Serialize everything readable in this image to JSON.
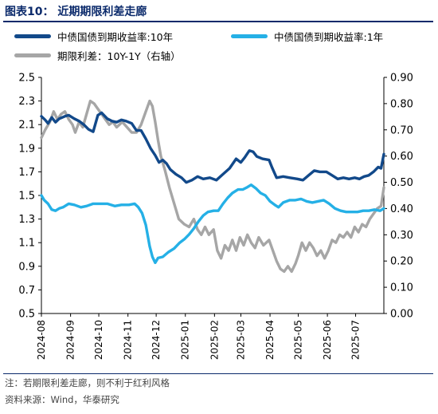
{
  "header": {
    "title": "图表10：  近期期限利差走廊"
  },
  "footer": {
    "note": "注：若期限利差走廊，则不利于红利风格",
    "source": "资料来源：Wind，华泰研究"
  },
  "colors": {
    "title": "#0b2a6b",
    "ten_year": "#12498a",
    "one_year": "#25b0e6",
    "spread": "#a6a6a6"
  },
  "chart_data": {
    "type": "line",
    "legend_position": "top",
    "grid": false,
    "x_tick_labels": [
      "2024-08",
      "2024-09",
      "2024-10",
      "2024-11",
      "2024-12",
      "2025-01",
      "2025-02",
      "2025-03",
      "2025-04",
      "2025-05",
      "2025-06",
      "2025-07"
    ],
    "x_range": [
      "2024-08-01",
      "2025-07-31"
    ],
    "y_left": {
      "min": 0.5,
      "max": 2.5,
      "ticks": [
        "0.5",
        "0.7",
        "0.9",
        "1.1",
        "1.3",
        "1.5",
        "1.7",
        "1.9",
        "2.1",
        "2.3",
        "2.5"
      ]
    },
    "y_right": {
      "min": 0.0,
      "max": 0.9,
      "ticks": [
        "0.00",
        "0.10",
        "0.20",
        "0.30",
        "0.40",
        "0.50",
        "0.60",
        "0.70",
        "0.80",
        "0.90"
      ]
    },
    "series": [
      {
        "name": "中债国债到期收益率:10年",
        "axis": "left",
        "color": "#12498a",
        "points": [
          [
            "2024-08-01",
            2.17
          ],
          [
            "2024-08-05",
            2.14
          ],
          [
            "2024-08-08",
            2.11
          ],
          [
            "2024-08-12",
            2.16
          ],
          [
            "2024-08-16",
            2.12
          ],
          [
            "2024-08-20",
            2.15
          ],
          [
            "2024-08-26",
            2.17
          ],
          [
            "2024-08-30",
            2.18
          ],
          [
            "2024-09-05",
            2.15
          ],
          [
            "2024-09-10",
            2.13
          ],
          [
            "2024-09-15",
            2.1
          ],
          [
            "2024-09-20",
            2.06
          ],
          [
            "2024-09-25",
            2.04
          ],
          [
            "2024-09-30",
            2.18
          ],
          [
            "2024-10-04",
            2.2
          ],
          [
            "2024-10-10",
            2.15
          ],
          [
            "2024-10-15",
            2.13
          ],
          [
            "2024-10-20",
            2.12
          ],
          [
            "2024-10-25",
            2.14
          ],
          [
            "2024-10-30",
            2.13
          ],
          [
            "2024-11-05",
            2.11
          ],
          [
            "2024-11-10",
            2.05
          ],
          [
            "2024-11-15",
            2.05
          ],
          [
            "2024-11-20",
            1.98
          ],
          [
            "2024-11-25",
            1.9
          ],
          [
            "2024-11-30",
            1.84
          ],
          [
            "2024-12-04",
            1.78
          ],
          [
            "2024-12-08",
            1.8
          ],
          [
            "2024-12-12",
            1.77
          ],
          [
            "2024-12-16",
            1.72
          ],
          [
            "2024-12-22",
            1.68
          ],
          [
            "2024-12-28",
            1.65
          ],
          [
            "2025-01-02",
            1.61
          ],
          [
            "2025-01-08",
            1.63
          ],
          [
            "2025-01-14",
            1.66
          ],
          [
            "2025-01-20",
            1.64
          ],
          [
            "2025-01-27",
            1.65
          ],
          [
            "2025-02-03",
            1.63
          ],
          [
            "2025-02-10",
            1.68
          ],
          [
            "2025-02-17",
            1.73
          ],
          [
            "2025-02-24",
            1.81
          ],
          [
            "2025-03-01",
            1.78
          ],
          [
            "2025-03-05",
            1.82
          ],
          [
            "2025-03-10",
            1.88
          ],
          [
            "2025-03-14",
            1.87
          ],
          [
            "2025-03-18",
            1.83
          ],
          [
            "2025-03-24",
            1.81
          ],
          [
            "2025-03-31",
            1.8
          ],
          [
            "2025-04-03",
            1.74
          ],
          [
            "2025-04-08",
            1.65
          ],
          [
            "2025-04-15",
            1.66
          ],
          [
            "2025-04-22",
            1.65
          ],
          [
            "2025-04-30",
            1.64
          ],
          [
            "2025-05-06",
            1.63
          ],
          [
            "2025-05-12",
            1.67
          ],
          [
            "2025-05-18",
            1.71
          ],
          [
            "2025-05-24",
            1.7
          ],
          [
            "2025-05-31",
            1.7
          ],
          [
            "2025-06-06",
            1.67
          ],
          [
            "2025-06-12",
            1.64
          ],
          [
            "2025-06-18",
            1.65
          ],
          [
            "2025-06-24",
            1.64
          ],
          [
            "2025-06-30",
            1.65
          ],
          [
            "2025-07-05",
            1.64
          ],
          [
            "2025-07-10",
            1.66
          ],
          [
            "2025-07-15",
            1.67
          ],
          [
            "2025-07-20",
            1.7
          ],
          [
            "2025-07-25",
            1.74
          ],
          [
            "2025-07-28",
            1.73
          ],
          [
            "2025-07-31",
            1.85
          ]
        ]
      },
      {
        "name": "中债国债到期收益率:1年",
        "axis": "left",
        "color": "#25b0e6",
        "points": [
          [
            "2024-08-01",
            1.5
          ],
          [
            "2024-08-04",
            1.46
          ],
          [
            "2024-08-08",
            1.43
          ],
          [
            "2024-08-12",
            1.38
          ],
          [
            "2024-08-16",
            1.37
          ],
          [
            "2024-08-20",
            1.39
          ],
          [
            "2024-08-24",
            1.4
          ],
          [
            "2024-08-30",
            1.43
          ],
          [
            "2024-09-05",
            1.42
          ],
          [
            "2024-09-12",
            1.4
          ],
          [
            "2024-09-18",
            1.41
          ],
          [
            "2024-09-25",
            1.43
          ],
          [
            "2024-10-02",
            1.43
          ],
          [
            "2024-10-10",
            1.43
          ],
          [
            "2024-10-18",
            1.41
          ],
          [
            "2024-10-25",
            1.42
          ],
          [
            "2024-11-02",
            1.42
          ],
          [
            "2024-11-08",
            1.43
          ],
          [
            "2024-11-12",
            1.4
          ],
          [
            "2024-11-16",
            1.35
          ],
          [
            "2024-11-20",
            1.25
          ],
          [
            "2024-11-24",
            1.07
          ],
          [
            "2024-11-27",
            0.98
          ],
          [
            "2024-11-30",
            0.93
          ],
          [
            "2024-12-03",
            0.97
          ],
          [
            "2024-12-08",
            0.98
          ],
          [
            "2024-12-14",
            1.02
          ],
          [
            "2024-12-20",
            1.05
          ],
          [
            "2024-12-26",
            1.1
          ],
          [
            "2024-12-31",
            1.13
          ],
          [
            "2025-01-05",
            1.17
          ],
          [
            "2025-01-10",
            1.22
          ],
          [
            "2025-01-15",
            1.28
          ],
          [
            "2025-01-20",
            1.33
          ],
          [
            "2025-01-25",
            1.36
          ],
          [
            "2025-01-31",
            1.37
          ],
          [
            "2025-02-05",
            1.37
          ],
          [
            "2025-02-10",
            1.43
          ],
          [
            "2025-02-15",
            1.48
          ],
          [
            "2025-02-20",
            1.52
          ],
          [
            "2025-02-26",
            1.55
          ],
          [
            "2025-03-03",
            1.55
          ],
          [
            "2025-03-08",
            1.57
          ],
          [
            "2025-03-12",
            1.59
          ],
          [
            "2025-03-17",
            1.56
          ],
          [
            "2025-03-22",
            1.52
          ],
          [
            "2025-03-27",
            1.5
          ],
          [
            "2025-04-01",
            1.45
          ],
          [
            "2025-04-06",
            1.42
          ],
          [
            "2025-04-10",
            1.4
          ],
          [
            "2025-04-15",
            1.44
          ],
          [
            "2025-04-22",
            1.46
          ],
          [
            "2025-04-28",
            1.46
          ],
          [
            "2025-05-04",
            1.47
          ],
          [
            "2025-05-10",
            1.45
          ],
          [
            "2025-05-16",
            1.44
          ],
          [
            "2025-05-22",
            1.45
          ],
          [
            "2025-05-28",
            1.46
          ],
          [
            "2025-06-03",
            1.43
          ],
          [
            "2025-06-09",
            1.39
          ],
          [
            "2025-06-15",
            1.37
          ],
          [
            "2025-06-21",
            1.36
          ],
          [
            "2025-06-27",
            1.36
          ],
          [
            "2025-07-03",
            1.36
          ],
          [
            "2025-07-09",
            1.37
          ],
          [
            "2025-07-15",
            1.37
          ],
          [
            "2025-07-21",
            1.38
          ],
          [
            "2025-07-27",
            1.37
          ],
          [
            "2025-07-31",
            1.39
          ]
        ]
      },
      {
        "name": "期限利差：10Y-1Y（右轴）",
        "axis": "right",
        "color": "#a6a6a6",
        "points": [
          [
            "2024-08-01",
            0.67
          ],
          [
            "2024-08-05",
            0.7
          ],
          [
            "2024-08-10",
            0.73
          ],
          [
            "2024-08-14",
            0.77
          ],
          [
            "2024-08-18",
            0.74
          ],
          [
            "2024-08-22",
            0.76
          ],
          [
            "2024-08-26",
            0.77
          ],
          [
            "2024-08-30",
            0.74
          ],
          [
            "2024-09-03",
            0.72
          ],
          [
            "2024-09-06",
            0.69
          ],
          [
            "2024-09-10",
            0.73
          ],
          [
            "2024-09-14",
            0.71
          ],
          [
            "2024-09-18",
            0.76
          ],
          [
            "2024-09-22",
            0.81
          ],
          [
            "2024-09-26",
            0.8
          ],
          [
            "2024-09-30",
            0.78
          ],
          [
            "2024-10-04",
            0.76
          ],
          [
            "2024-10-08",
            0.74
          ],
          [
            "2024-10-12",
            0.72
          ],
          [
            "2024-10-16",
            0.73
          ],
          [
            "2024-10-20",
            0.71
          ],
          [
            "2024-10-26",
            0.73
          ],
          [
            "2024-10-31",
            0.71
          ],
          [
            "2024-11-05",
            0.69
          ],
          [
            "2024-11-10",
            0.69
          ],
          [
            "2024-11-15",
            0.72
          ],
          [
            "2024-11-20",
            0.77
          ],
          [
            "2024-11-24",
            0.81
          ],
          [
            "2024-11-27",
            0.79
          ],
          [
            "2024-11-30",
            0.73
          ],
          [
            "2024-12-03",
            0.66
          ],
          [
            "2024-12-06",
            0.6
          ],
          [
            "2024-12-10",
            0.55
          ],
          [
            "2024-12-15",
            0.48
          ],
          [
            "2024-12-20",
            0.42
          ],
          [
            "2024-12-25",
            0.36
          ],
          [
            "2024-12-31",
            0.34
          ],
          [
            "2025-01-05",
            0.33
          ],
          [
            "2025-01-10",
            0.36
          ],
          [
            "2025-01-14",
            0.32
          ],
          [
            "2025-01-18",
            0.3
          ],
          [
            "2025-01-22",
            0.33
          ],
          [
            "2025-01-26",
            0.3
          ],
          [
            "2025-01-31",
            0.32
          ],
          [
            "2025-02-04",
            0.24
          ],
          [
            "2025-02-08",
            0.21
          ],
          [
            "2025-02-12",
            0.26
          ],
          [
            "2025-02-16",
            0.24
          ],
          [
            "2025-02-20",
            0.28
          ],
          [
            "2025-02-24",
            0.24
          ],
          [
            "2025-02-28",
            0.29
          ],
          [
            "2025-03-04",
            0.26
          ],
          [
            "2025-03-08",
            0.3
          ],
          [
            "2025-03-12",
            0.27
          ],
          [
            "2025-03-16",
            0.25
          ],
          [
            "2025-03-20",
            0.29
          ],
          [
            "2025-03-25",
            0.26
          ],
          [
            "2025-03-31",
            0.28
          ],
          [
            "2025-04-04",
            0.24
          ],
          [
            "2025-04-08",
            0.2
          ],
          [
            "2025-04-12",
            0.17
          ],
          [
            "2025-04-16",
            0.16
          ],
          [
            "2025-04-20",
            0.18
          ],
          [
            "2025-04-24",
            0.16
          ],
          [
            "2025-04-28",
            0.19
          ],
          [
            "2025-05-01",
            0.22
          ],
          [
            "2025-05-05",
            0.27
          ],
          [
            "2025-05-09",
            0.24
          ],
          [
            "2025-05-13",
            0.27
          ],
          [
            "2025-05-17",
            0.25
          ],
          [
            "2025-05-21",
            0.22
          ],
          [
            "2025-05-25",
            0.24
          ],
          [
            "2025-05-29",
            0.21
          ],
          [
            "2025-06-02",
            0.24
          ],
          [
            "2025-06-06",
            0.28
          ],
          [
            "2025-06-10",
            0.27
          ],
          [
            "2025-06-14",
            0.3
          ],
          [
            "2025-06-18",
            0.29
          ],
          [
            "2025-06-22",
            0.31
          ],
          [
            "2025-06-26",
            0.29
          ],
          [
            "2025-06-30",
            0.33
          ],
          [
            "2025-07-04",
            0.31
          ],
          [
            "2025-07-08",
            0.34
          ],
          [
            "2025-07-12",
            0.33
          ],
          [
            "2025-07-16",
            0.36
          ],
          [
            "2025-07-20",
            0.38
          ],
          [
            "2025-07-24",
            0.4
          ],
          [
            "2025-07-28",
            0.41
          ],
          [
            "2025-07-31",
            0.48
          ]
        ]
      }
    ]
  }
}
